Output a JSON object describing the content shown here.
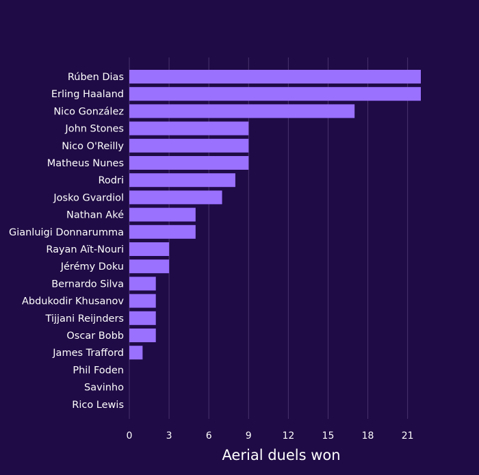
{
  "chart_data": {
    "type": "bar",
    "orientation": "horizontal",
    "xlabel": "Aerial duels won",
    "xlim": [
      0,
      22
    ],
    "xticks": [
      0,
      3,
      6,
      9,
      12,
      15,
      18,
      21
    ],
    "grid": "vertical",
    "bar_color": "#9a70ff",
    "background_color": "#1f0b45",
    "grid_color": "#4a3370",
    "categories": [
      "Rúben Dias",
      "Erling Haaland",
      "Nico González",
      "John Stones",
      "Nico O'Reilly",
      "Matheus Nunes",
      "Rodri",
      "Josko Gvardiol",
      "Nathan Aké",
      "Gianluigi Donnarumma",
      "Rayan Aït-Nouri",
      "Jérémy Doku",
      "Bernardo Silva",
      "Abdukodir Khusanov",
      "Tijjani Reijnders",
      "Oscar Bobb",
      "James Trafford",
      "Phil Foden",
      "Savinho",
      "Rico Lewis"
    ],
    "values": [
      22,
      22,
      17,
      9,
      9,
      9,
      8,
      7,
      5,
      5,
      3,
      3,
      2,
      2,
      2,
      2,
      1,
      0,
      0,
      0
    ]
  }
}
